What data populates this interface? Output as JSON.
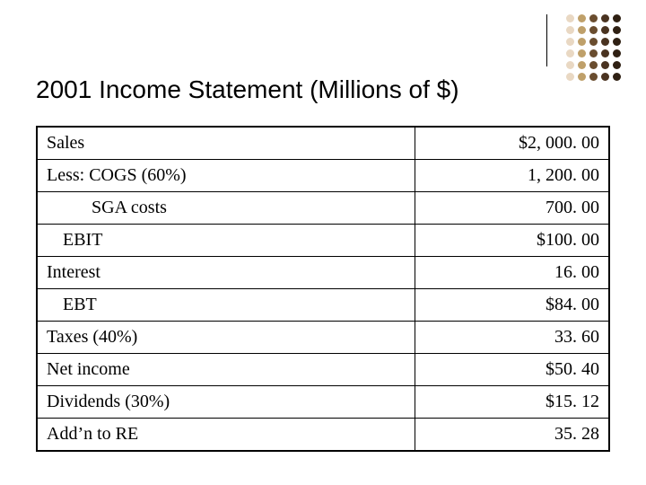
{
  "title": "2001 Income Statement (Millions of $)",
  "table": {
    "rows": [
      {
        "label": "Sales",
        "value": "$2, 000. 00",
        "indent": 0
      },
      {
        "label": "Less: COGS (60%)",
        "value": "1, 200. 00",
        "indent": 0
      },
      {
        "label": "SGA costs",
        "value": "700. 00",
        "indent": 2
      },
      {
        "label": "EBIT",
        "value": "$100. 00",
        "indent": 1
      },
      {
        "label": "Interest",
        "value": "16. 00",
        "indent": 0
      },
      {
        "label": "EBT",
        "value": "$84. 00",
        "indent": 1
      },
      {
        "label": "Taxes (40%)",
        "value": "33. 60",
        "indent": 0
      },
      {
        "label": "Net income",
        "value": "$50. 40",
        "indent": 0
      },
      {
        "label": "Dividends (30%)",
        "value": "$15. 12",
        "indent": 0
      },
      {
        "label": "Add’n to RE",
        "value": "35. 28",
        "indent": 0
      }
    ],
    "border_color": "#000000",
    "cell_fontsize": 20,
    "label_col_width_pct": 66,
    "value_col_width_pct": 34
  },
  "decoration": {
    "columns": [
      {
        "color": "#e9d8c3",
        "rows": 6
      },
      {
        "color": "#bfa06a",
        "rows": 6
      },
      {
        "color": "#6a4d2f",
        "rows": 6
      },
      {
        "color": "#4a3320",
        "rows": 6
      },
      {
        "color": "#2f2013",
        "rows": 6
      }
    ],
    "dot_size": 9,
    "gap": 4
  },
  "style": {
    "background": "#ffffff",
    "title_font": "Arial",
    "title_fontsize": 28,
    "body_font": "Times New Roman"
  }
}
